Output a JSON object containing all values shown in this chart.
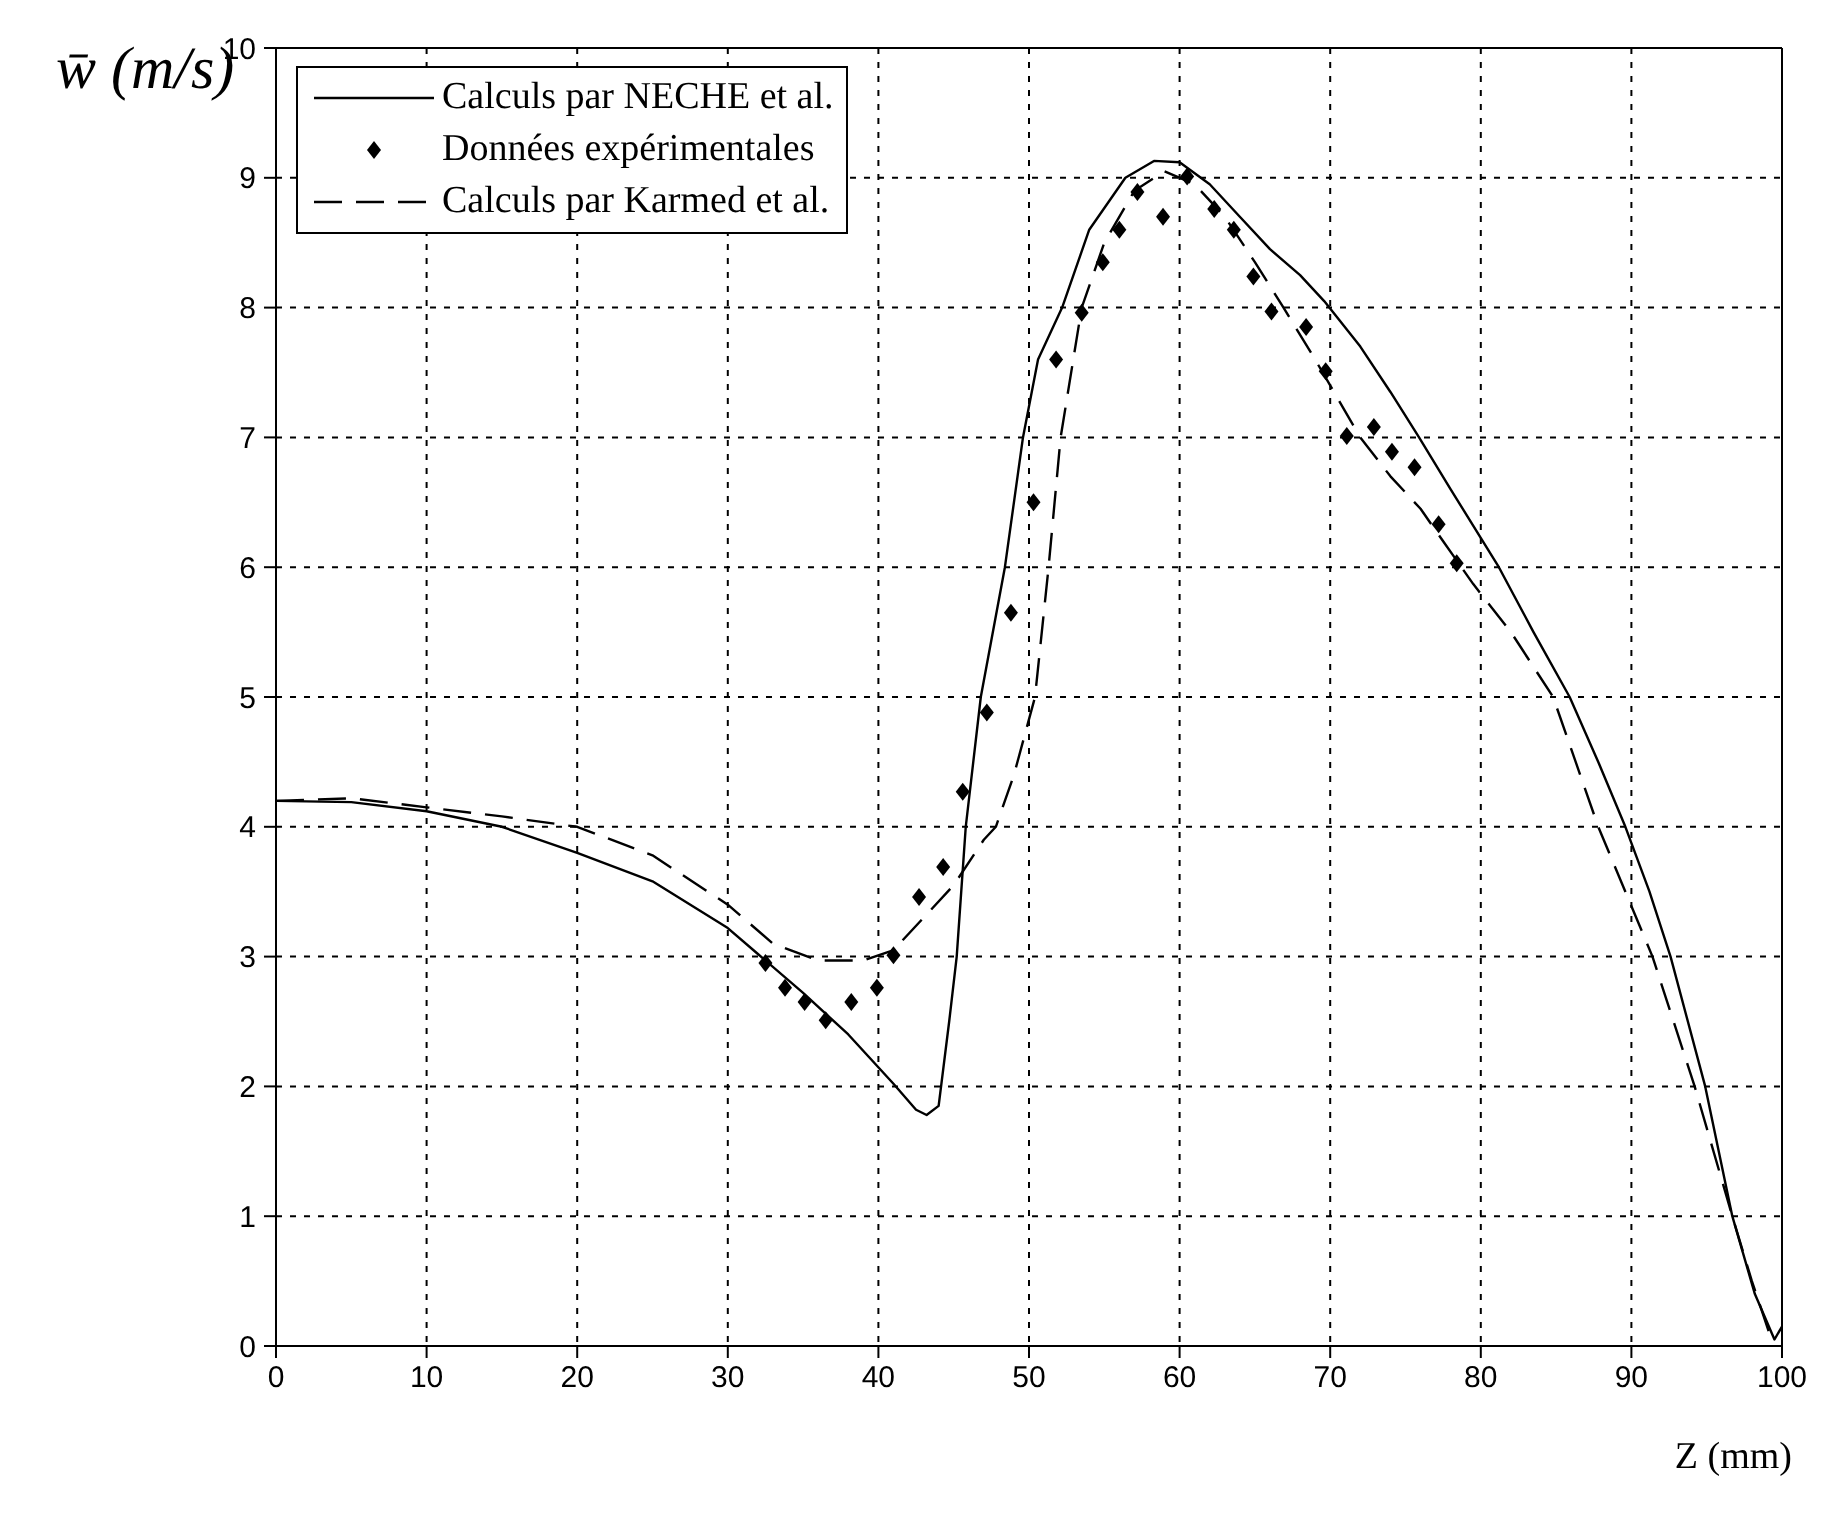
{
  "chart_data": {
    "type": "line",
    "xlabel": "Z (mm)",
    "ylabel": "w̄ (m/s)",
    "xlim": [
      0,
      100
    ],
    "xticks": [
      0,
      10,
      20,
      30,
      40,
      50,
      60,
      70,
      80,
      90,
      100
    ],
    "ylim": [
      0,
      10
    ],
    "yticks": [
      0,
      1,
      2,
      3,
      4,
      5,
      6,
      7,
      8,
      9,
      10
    ],
    "grid": true,
    "legend": "top left",
    "series": [
      {
        "name": "Calculs par NECHE et al.",
        "color": "#000000",
        "line_style": "solid",
        "marker": "none",
        "x": [
          0,
          5,
          10,
          15,
          20,
          25,
          30,
          32,
          35,
          38,
          41,
          42.5,
          43.2,
          44,
          44.7,
          45.2,
          45.8,
          46.8,
          48.4,
          49.6,
          50.6,
          52.2,
          54,
          56.4,
          58.3,
          60,
          62,
          64,
          66,
          68,
          69.6,
          72,
          74,
          75.9,
          78,
          81.2,
          83.5,
          85.9,
          87.8,
          89.6,
          91.2,
          92.6,
          94.9,
          96.7,
          98.2,
          99.5,
          100
        ],
        "values": [
          4.2,
          4.19,
          4.12,
          4.0,
          3.8,
          3.58,
          3.22,
          3.02,
          2.72,
          2.4,
          2.02,
          1.82,
          1.78,
          1.85,
          2.5,
          3.0,
          4.0,
          5.0,
          6.0,
          7.0,
          7.6,
          8.0,
          8.6,
          9.0,
          9.13,
          9.12,
          8.95,
          8.7,
          8.45,
          8.25,
          8.05,
          7.7,
          7.35,
          7.0,
          6.6,
          6.0,
          5.5,
          5.0,
          4.5,
          4.0,
          3.5,
          3.0,
          2.0,
          1.0,
          0.4,
          0.05,
          0.15
        ]
      },
      {
        "name": "Données expérimentales",
        "type": "scatter",
        "color": "#000000",
        "marker": "diamond",
        "x": [
          32.5,
          33.8,
          35.1,
          36.5,
          38.2,
          39.9,
          41.0,
          42.7,
          44.3,
          45.6,
          47.2,
          48.8,
          50.3,
          51.8,
          53.5,
          54.9,
          56.0,
          57.2,
          58.9,
          60.5,
          62.3,
          63.6,
          64.9,
          66.1,
          68.4,
          69.7,
          71.1,
          72.9,
          74.1,
          75.6,
          77.2,
          78.4
        ],
        "values": [
          2.95,
          2.76,
          2.65,
          2.51,
          2.65,
          2.76,
          3.01,
          3.46,
          3.69,
          4.27,
          4.88,
          5.65,
          6.5,
          7.6,
          7.96,
          8.35,
          8.6,
          8.89,
          8.7,
          9.01,
          8.76,
          8.6,
          8.24,
          7.97,
          7.85,
          7.51,
          7.01,
          7.08,
          6.89,
          6.77,
          6.33,
          6.03
        ]
      },
      {
        "name": "Calculs par Karmed et al.",
        "color": "#000000",
        "line_style": "dashed",
        "marker": "none",
        "x": [
          0,
          5,
          10,
          15,
          20,
          25,
          30,
          33,
          36,
          39,
          41,
          43,
          45,
          47,
          47.8,
          49,
          50.4,
          51.3,
          52.1,
          53.5,
          55,
          57,
          59,
          61,
          63,
          65,
          66.9,
          69,
          72,
          74,
          76,
          77.5,
          79.5,
          82,
          84.8,
          86.3,
          87.8,
          89.6,
          91.4,
          94.2,
          96.7,
          98,
          99.3
        ],
        "values": [
          4.2,
          4.22,
          4.15,
          4.08,
          4.0,
          3.78,
          3.4,
          3.1,
          2.97,
          2.97,
          3.05,
          3.3,
          3.55,
          3.9,
          4.0,
          4.4,
          5.0,
          6.0,
          7.0,
          8.0,
          8.5,
          8.9,
          9.05,
          8.95,
          8.7,
          8.35,
          8.0,
          7.6,
          7.0,
          6.7,
          6.45,
          6.2,
          5.87,
          5.5,
          5.0,
          4.5,
          4.0,
          3.5,
          3.0,
          2.0,
          1.0,
          0.5,
          0.05
        ]
      }
    ]
  }
}
